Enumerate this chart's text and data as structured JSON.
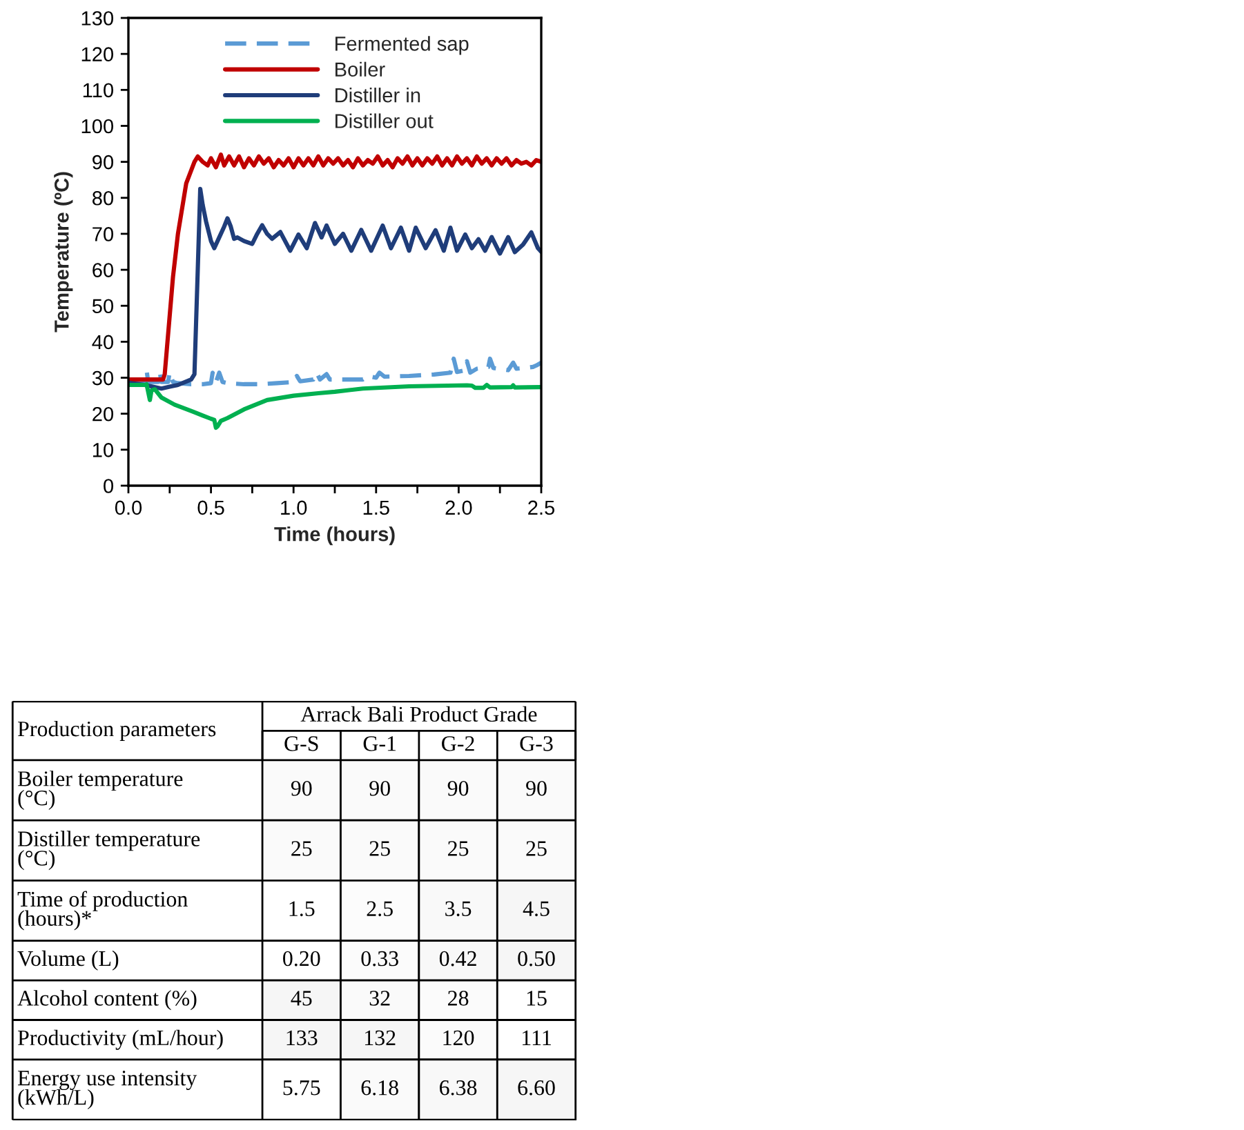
{
  "chart_data": [
    {
      "type": "line",
      "xlabel": "Time (hours)",
      "ylabel": "Temperature (ºC)",
      "xlim": [
        0,
        2.5
      ],
      "xticks": [
        {
          "value": 0,
          "label": "0.0"
        },
        {
          "value": 0.25,
          "label": null
        },
        {
          "value": 0.5,
          "label": "0.5"
        },
        {
          "value": 0.75,
          "label": null
        },
        {
          "value": 1,
          "label": "1.0"
        },
        {
          "value": 1.25,
          "label": null
        },
        {
          "value": 1.5,
          "label": "1.5"
        },
        {
          "value": 1.75,
          "label": null
        },
        {
          "value": 2,
          "label": "2.0"
        },
        {
          "value": 2.25,
          "label": null
        },
        {
          "value": 2.5,
          "label": "2.5"
        }
      ],
      "ylim": [
        0,
        130
      ],
      "yticks": [
        0,
        10,
        20,
        30,
        40,
        50,
        60,
        70,
        80,
        90,
        100,
        110,
        120,
        130
      ],
      "legend": "top",
      "series": [
        {
          "name": "Fermented sap",
          "color": "#5b9bd5",
          "line_style": "dashed",
          "x": [
            0,
            0.08,
            0.1,
            0.11,
            0.12,
            0.18,
            0.19,
            0.2,
            0.24,
            0.25,
            0.27,
            0.3,
            0.38,
            0.45,
            0.5,
            0.51,
            0.53,
            0.55,
            0.57,
            0.6,
            0.7,
            0.8,
            0.9,
            1.0,
            1.02,
            1.04,
            1.12,
            1.14,
            1.16,
            1.2,
            1.22,
            1.3,
            1.42,
            1.45,
            1.5,
            1.52,
            1.55,
            1.7,
            1.85,
            1.95,
            1.97,
            1.99,
            2.03,
            2.05,
            2.07,
            2.11,
            2.18,
            2.19,
            2.21,
            2.3,
            2.33,
            2.35,
            2.45,
            2.47,
            2.5
          ],
          "values": [
            28.6,
            28.6,
            28.6,
            32.1,
            28.8,
            28.8,
            31.5,
            28.8,
            28.8,
            31.5,
            28.8,
            28.5,
            28.2,
            28.2,
            28.5,
            31.4,
            28.8,
            31.4,
            28.8,
            28.5,
            28.2,
            28.2,
            28.5,
            28.8,
            30.5,
            29,
            29.5,
            31.4,
            29.5,
            31,
            29.5,
            29.5,
            29.5,
            30.5,
            30,
            31.4,
            30.3,
            30.5,
            30.9,
            31.4,
            35.3,
            31.6,
            32,
            34.6,
            31.4,
            32.5,
            33,
            35.3,
            32.7,
            32.1,
            34.2,
            32.5,
            33,
            33.4,
            34.2
          ]
        },
        {
          "name": "Boiler",
          "color": "#c00000",
          "x": [
            0,
            0.21,
            0.22,
            0.27,
            0.3,
            0.35,
            0.4,
            0.42,
            0.45,
            0.48,
            0.5,
            0.53,
            0.56,
            0.58,
            0.61,
            0.64,
            0.67,
            0.7,
            0.73,
            0.76,
            0.79,
            0.82,
            0.85,
            0.88,
            0.91,
            0.94,
            0.97,
            1.0,
            1.03,
            1.06,
            1.09,
            1.12,
            1.15,
            1.18,
            1.21,
            1.24,
            1.27,
            1.3,
            1.33,
            1.36,
            1.39,
            1.42,
            1.45,
            1.48,
            1.51,
            1.54,
            1.57,
            1.6,
            1.63,
            1.66,
            1.69,
            1.72,
            1.75,
            1.78,
            1.81,
            1.84,
            1.87,
            1.9,
            1.93,
            1.96,
            1.99,
            2.02,
            2.05,
            2.08,
            2.11,
            2.14,
            2.17,
            2.2,
            2.23,
            2.26,
            2.29,
            2.32,
            2.35,
            2.38,
            2.41,
            2.44,
            2.47,
            2.5
          ],
          "values": [
            29.5,
            29.5,
            31,
            58,
            70,
            84,
            90,
            91.5,
            90,
            89,
            91,
            88.5,
            92,
            89,
            91.5,
            89,
            91.5,
            88.5,
            91,
            89,
            91.5,
            89.5,
            91,
            88.5,
            90.5,
            89,
            91,
            88.5,
            91,
            89,
            91,
            89,
            91.5,
            89,
            91,
            89.5,
            91,
            89,
            90.5,
            88.5,
            91,
            89,
            90.5,
            89.5,
            91.5,
            89,
            90.5,
            88.5,
            91,
            89.5,
            91.5,
            89,
            91,
            89,
            91,
            89.5,
            91.5,
            89,
            91,
            89,
            91.5,
            89.5,
            91,
            89,
            91.5,
            89.5,
            91,
            89,
            91,
            89.5,
            91,
            89,
            90.5,
            89.5,
            90,
            89,
            90.5,
            90
          ]
        },
        {
          "name": "Distiller in",
          "color": "#1f3d7a",
          "x": [
            0,
            0.1,
            0.2,
            0.25,
            0.3,
            0.38,
            0.4,
            0.42,
            0.435,
            0.45,
            0.47,
            0.5,
            0.52,
            0.55,
            0.58,
            0.6,
            0.62,
            0.64,
            0.66,
            0.7,
            0.75,
            0.78,
            0.81,
            0.84,
            0.87,
            0.92,
            0.98,
            1.03,
            1.08,
            1.13,
            1.17,
            1.2,
            1.25,
            1.3,
            1.35,
            1.41,
            1.47,
            1.54,
            1.59,
            1.65,
            1.7,
            1.74,
            1.8,
            1.86,
            1.91,
            1.95,
            1.99,
            2.04,
            2.08,
            2.12,
            2.16,
            2.2,
            2.25,
            2.3,
            2.34,
            2.39,
            2.44,
            2.48,
            2.5
          ],
          "values": [
            28.6,
            28,
            27,
            27.5,
            28,
            29.5,
            31,
            60,
            82.5,
            78,
            73.5,
            68,
            66,
            69,
            72,
            74.3,
            72,
            68.6,
            69,
            68,
            67.2,
            70,
            72.4,
            70,
            68.6,
            70.5,
            65.3,
            69.8,
            66,
            73,
            69,
            72.3,
            67.2,
            70,
            65.3,
            71.1,
            65.3,
            72.3,
            66,
            71.7,
            65.3,
            71.7,
            66,
            71,
            65.3,
            71.7,
            65.3,
            69.8,
            66,
            68.5,
            65.3,
            69.1,
            64.5,
            69.1,
            64.9,
            67,
            70.4,
            66,
            65
          ]
        },
        {
          "name": "Distiller out",
          "color": "#00b050",
          "x": [
            0,
            0.1,
            0.11,
            0.13,
            0.14,
            0.16,
            0.2,
            0.28,
            0.39,
            0.45,
            0.5,
            0.52,
            0.53,
            0.54,
            0.56,
            0.6,
            0.7,
            0.84,
            1.0,
            1.15,
            1.25,
            1.42,
            1.7,
            2.05,
            2.08,
            2.1,
            2.15,
            2.17,
            2.19,
            2.32,
            2.33,
            2.34,
            2.5
          ],
          "values": [
            28,
            28,
            28.2,
            23.8,
            26.5,
            26.8,
            24.5,
            22.5,
            20.6,
            19.5,
            18.6,
            18.3,
            16.1,
            16.5,
            18,
            18.8,
            21.2,
            23.8,
            25,
            25.7,
            26.1,
            27,
            27.6,
            27.9,
            27.8,
            27.2,
            27.2,
            28,
            27.3,
            27.4,
            27.9,
            27.3,
            27.4
          ]
        }
      ]
    },
    {
      "type": "heatmap",
      "xlabel": "Arrack Bali Product Grade",
      "ylabel": "Production parameters",
      "categories": [
        "G-S",
        "G-1",
        "G-2",
        "G-3"
      ],
      "y_categories": [
        "Boiler temperature\n(°C)",
        "Distiller temperature\n(°C)",
        "Time of production\n(hours)*",
        "Volume (L)",
        "Alcohol content (%)",
        "Productivity (mL/hour)",
        "Energy use intensity\n(kWh/L)"
      ],
      "cells": [
        [
          90,
          90,
          90,
          90
        ],
        [
          25,
          25,
          25,
          25
        ],
        [
          1.5,
          2.5,
          3.5,
          4.5
        ],
        [
          0.2,
          0.33,
          0.42,
          0.5
        ],
        [
          45,
          32,
          28,
          15
        ],
        [
          133,
          132,
          120,
          111
        ],
        [
          5.75,
          6.18,
          6.38,
          6.6
        ]
      ],
      "cell_labels": [
        [
          "90",
          "90",
          "90",
          "90"
        ],
        [
          "25",
          "25",
          "25",
          "25"
        ],
        [
          "1.5",
          "2.5",
          "3.5",
          "4.5"
        ],
        [
          "0.20",
          "0.33",
          "0.42",
          "0.50"
        ],
        [
          "45",
          "32",
          "28",
          "15"
        ],
        [
          "133",
          "132",
          "120",
          "111"
        ],
        [
          "5.75",
          "6.18",
          "6.38",
          "6.60"
        ]
      ]
    }
  ]
}
